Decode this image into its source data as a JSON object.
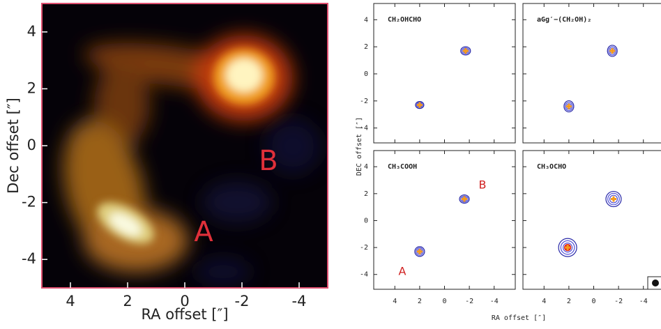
{
  "chart_data": [
    {
      "type": "image",
      "xlabel": "RA offset [″]",
      "ylabel": "Dec offset [″]",
      "xlim": [
        5,
        -5
      ],
      "ylim": [
        -5,
        5
      ],
      "xticks": [
        4,
        2,
        0,
        -2,
        -4
      ],
      "yticks": [
        -4,
        -2,
        0,
        2,
        4
      ],
      "annotations": [
        "A",
        "B"
      ]
    },
    {
      "type": "contour",
      "title": "CH₂OHCHO",
      "ylabel": "DEC offset [″]",
      "xlim": [
        5.7,
        -5.7
      ],
      "ylim": [
        -5.1,
        5.2
      ],
      "xticks": [
        4,
        2,
        0,
        -2,
        -4
      ],
      "yticks": [
        -4,
        -2,
        0,
        2,
        4
      ],
      "x": [
        -1.7,
        2
      ],
      "y": [
        1.7,
        -2.3
      ]
    },
    {
      "type": "contour",
      "title": "aGg′−(CH₂OH)₂",
      "xlim": [
        5.7,
        -5.7
      ],
      "ylim": [
        -5.1,
        5.2
      ],
      "xticks": [
        4,
        2,
        0,
        -2,
        -4
      ],
      "yticks": [
        -4,
        -2,
        0,
        2,
        4
      ],
      "x": [
        -1.5,
        2
      ],
      "y": [
        1.7,
        -2.4
      ]
    },
    {
      "type": "contour",
      "title": "CH₃COOH",
      "xlim": [
        5.7,
        -5.7
      ],
      "ylim": [
        -5.1,
        5.2
      ],
      "xticks": [
        4,
        2,
        0,
        -2,
        -4
      ],
      "yticks": [
        -4,
        -2,
        0,
        2,
        4
      ],
      "x": [
        -1.6,
        2
      ],
      "y": [
        1.6,
        -2.3
      ],
      "annotations": [
        "B",
        "A"
      ]
    },
    {
      "type": "contour",
      "title": "CH₃OCHO",
      "xlabel": "RA offset [″]",
      "xlim": [
        5.7,
        -5.7
      ],
      "ylim": [
        -5.1,
        5.2
      ],
      "xticks": [
        4,
        2,
        0,
        -2,
        -4
      ],
      "yticks": [
        -4,
        -2,
        0,
        2,
        4
      ],
      "x": [
        -1.6,
        2.1
      ],
      "y": [
        1.6,
        -2.0
      ]
    }
  ]
}
